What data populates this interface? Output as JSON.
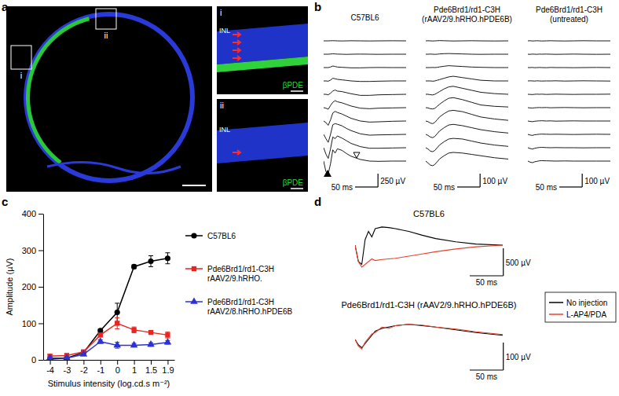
{
  "chart_data": [
    {
      "type": "image",
      "panel_label": "a",
      "box_labels": [
        "i",
        "ii"
      ],
      "insets": [
        {
          "label": "i",
          "layer": "INL",
          "stain": "βPDE"
        },
        {
          "label": "ii",
          "layer": "INL",
          "stain": "βPDE"
        }
      ]
    },
    {
      "type": "line",
      "panel_label": "b",
      "tick_labels": false,
      "color": "#000000",
      "x": [
        0,
        5,
        10,
        15,
        20,
        25,
        30,
        40,
        50,
        60,
        80,
        100,
        120,
        150,
        180
      ],
      "xlim": [
        0,
        180
      ],
      "groups": [
        {
          "title": "C57BL6",
          "ylim": [
            -250,
            250
          ],
          "scale_x": {
            "value": 50,
            "label": "50 ms"
          },
          "scale_y": {
            "value": 250,
            "label": "250 µV"
          },
          "series": [
            {
              "values": [
                0,
                0,
                0,
                2,
                3,
                2,
                0,
                -2,
                0,
                2,
                0,
                -2,
                0,
                2,
                0
              ]
            },
            {
              "values": [
                0,
                0,
                0,
                3,
                8,
                5,
                2,
                0,
                -3,
                0,
                2,
                0,
                -2,
                0,
                0
              ]
            },
            {
              "values": [
                0,
                0,
                0,
                10,
                30,
                20,
                10,
                5,
                0,
                -5,
                -5,
                0,
                2,
                0,
                0
              ]
            },
            {
              "values": [
                0,
                0,
                -5,
                15,
                50,
                40,
                30,
                20,
                10,
                0,
                -10,
                -10,
                -5,
                0,
                0
              ]
            },
            {
              "values": [
                0,
                0,
                -10,
                20,
                60,
                80,
                60,
                50,
                30,
                10,
                -20,
                -20,
                -10,
                -5,
                0
              ]
            },
            {
              "values": [
                0,
                -10,
                -30,
                40,
                100,
                130,
                110,
                90,
                60,
                30,
                -10,
                -20,
                -10,
                -5,
                0
              ]
            },
            {
              "values": [
                0,
                -30,
                -80,
                20,
                150,
                180,
                160,
                130,
                90,
                50,
                0,
                -20,
                -15,
                -5,
                0
              ]
            },
            {
              "values": [
                0,
                -80,
                -150,
                0,
                180,
                200,
                190,
                160,
                110,
                70,
                10,
                -15,
                -10,
                -5,
                0
              ]
            },
            {
              "values": [
                0,
                -120,
                -200,
                -20,
                200,
                170,
                220,
                180,
                130,
                80,
                20,
                -10,
                -10,
                -5,
                0
              ]
            },
            {
              "values": [
                0,
                -200,
                -240,
                -50,
                210,
                150,
                230,
                200,
                140,
                90,
                30,
                0,
                -5,
                0,
                0
              ]
            }
          ]
        },
        {
          "title": "Pde6Brd1/rd1-C3H (rAAV2/9.hRHO.hPDE6B)",
          "ylim": [
            -100,
            100
          ],
          "scale_x": {
            "value": 50,
            "label": "50 ms"
          },
          "scale_y": {
            "value": 100,
            "label": "100 µV"
          },
          "series": [
            {
              "values": [
                0,
                1,
                0,
                -1,
                0,
                1,
                2,
                1,
                0,
                -1,
                0,
                1,
                0,
                -1,
                0
              ]
            },
            {
              "values": [
                0,
                0,
                1,
                0,
                -1,
                0,
                2,
                4,
                5,
                4,
                2,
                0,
                -1,
                0,
                0
              ]
            },
            {
              "values": [
                0,
                0,
                0,
                1,
                0,
                2,
                5,
                10,
                14,
                12,
                8,
                4,
                2,
                0,
                0
              ]
            },
            {
              "values": [
                0,
                0,
                0,
                -2,
                0,
                5,
                10,
                20,
                30,
                35,
                25,
                15,
                5,
                0,
                0
              ]
            },
            {
              "values": [
                0,
                0,
                -3,
                -5,
                0,
                10,
                20,
                40,
                55,
                60,
                45,
                30,
                15,
                5,
                0
              ]
            },
            {
              "values": [
                0,
                -2,
                -8,
                -10,
                -5,
                10,
                25,
                50,
                70,
                75,
                60,
                40,
                20,
                10,
                5
              ]
            },
            {
              "values": [
                0,
                -5,
                -15,
                -20,
                -10,
                10,
                30,
                55,
                75,
                80,
                70,
                50,
                30,
                15,
                5
              ]
            },
            {
              "values": [
                0,
                -8,
                -20,
                -25,
                -15,
                5,
                25,
                50,
                70,
                75,
                65,
                50,
                35,
                20,
                10
              ]
            },
            {
              "values": [
                0,
                -10,
                -25,
                -30,
                -20,
                0,
                20,
                45,
                65,
                70,
                65,
                50,
                35,
                20,
                10
              ]
            },
            {
              "values": [
                0,
                -15,
                -30,
                -35,
                -25,
                -5,
                15,
                40,
                60,
                65,
                60,
                50,
                40,
                25,
                15
              ]
            }
          ]
        },
        {
          "title": "Pde6Brd1/rd1-C3H (untreated)",
          "ylim": [
            -100,
            100
          ],
          "scale_x": {
            "value": 50,
            "label": "50 ms"
          },
          "scale_y": {
            "value": 100,
            "label": "100 µV"
          },
          "series": [
            {
              "values": [
                0,
                1,
                -1,
                0,
                1,
                0,
                -1,
                0,
                1,
                0,
                -1,
                0,
                1,
                0,
                0
              ]
            },
            {
              "values": [
                0,
                -1,
                1,
                0,
                -1,
                1,
                0,
                1,
                0,
                -1,
                0,
                1,
                0,
                -1,
                0
              ]
            },
            {
              "values": [
                0,
                0,
                1,
                -1,
                0,
                1,
                0,
                -1,
                1,
                0,
                0,
                -1,
                0,
                1,
                0
              ]
            },
            {
              "values": [
                0,
                1,
                0,
                -1,
                1,
                0,
                -1,
                0,
                0,
                1,
                -1,
                0,
                1,
                0,
                -1
              ]
            },
            {
              "values": [
                0,
                -1,
                -2,
                0,
                1,
                0,
                1,
                -1,
                0,
                1,
                0,
                -1,
                0,
                0,
                1
              ]
            },
            {
              "values": [
                0,
                -2,
                -3,
                -1,
                0,
                1,
                0,
                1,
                -1,
                0,
                1,
                0,
                -1,
                0,
                0
              ]
            },
            {
              "values": [
                0,
                -3,
                -5,
                -2,
                0,
                1,
                2,
                0,
                1,
                -1,
                0,
                1,
                0,
                0,
                0
              ]
            },
            {
              "values": [
                0,
                -5,
                -8,
                -3,
                -1,
                1,
                2,
                1,
                0,
                1,
                0,
                -1,
                0,
                1,
                0
              ]
            },
            {
              "values": [
                0,
                -6,
                -10,
                -4,
                -1,
                2,
                3,
                1,
                0,
                1,
                0,
                0,
                -1,
                0,
                0
              ]
            },
            {
              "values": [
                0,
                -8,
                -12,
                -5,
                -2,
                2,
                3,
                2,
                1,
                0,
                1,
                0,
                0,
                0,
                0
              ]
            }
          ]
        }
      ]
    },
    {
      "type": "line",
      "panel_label": "c",
      "x_label": "Stimulus intensity (log.cd.s m⁻²)",
      "y_label": "Amplitude (µV)",
      "categories": [
        "-4",
        "-3",
        "-2",
        "-1",
        "0",
        "1",
        "1.5",
        "1.9"
      ],
      "ylim": [
        0,
        400
      ],
      "yticks": [
        0,
        100,
        200,
        300,
        400
      ],
      "legend": "right",
      "series": [
        {
          "name": "C57BL6",
          "color": "#000000",
          "marker": "circle",
          "values": [
            2,
            5,
            20,
            80,
            130,
            255,
            270,
            278
          ],
          "errors": [
            2,
            3,
            5,
            5,
            25,
            5,
            15,
            15
          ]
        },
        {
          "name": "Pde6Brd1/rd1-C3H rAAV2/9.hRHO.",
          "color": "#e8251f",
          "marker": "square",
          "values": [
            10,
            12,
            22,
            68,
            100,
            82,
            75,
            68
          ],
          "errors": [
            5,
            5,
            5,
            5,
            15,
            8,
            5,
            8
          ]
        },
        {
          "name": "Pde6Brd1/rd1-C3H rAAV2/8.hRHO.hPDE6B",
          "color": "#2d32d6",
          "marker": "triangle",
          "values": [
            5,
            5,
            15,
            50,
            40,
            40,
            42,
            48
          ],
          "errors": [
            3,
            3,
            3,
            5,
            8,
            5,
            5,
            5
          ]
        }
      ]
    },
    {
      "type": "line",
      "panel_label": "d",
      "tick_labels": false,
      "legend": "right",
      "x": [
        0,
        5,
        10,
        15,
        20,
        25,
        30,
        40,
        50,
        60,
        80,
        100,
        120,
        150,
        180,
        220
      ],
      "xlim": [
        0,
        220
      ],
      "groups": [
        {
          "title": "C57BL6",
          "ylim": [
            -500,
            500
          ],
          "scale_x": {
            "value": 50,
            "label": "50 ms"
          },
          "scale_y": {
            "value": 500,
            "label": "500 µV"
          },
          "series": [
            {
              "name": "No injection",
              "color": "#000000",
              "values": [
                0,
                -300,
                -350,
                100,
                250,
                150,
                300,
                330,
                320,
                300,
                250,
                180,
                120,
                60,
                20,
                0
              ]
            },
            {
              "name": "L-AP4/PDA",
              "color": "#e8402a",
              "values": [
                0,
                -300,
                -400,
                -350,
                -300,
                -250,
                -280,
                -260,
                -250,
                -240,
                -200,
                -160,
                -120,
                -70,
                -30,
                0
              ]
            }
          ]
        },
        {
          "title": "Pde6Brd1/rd1-C3H (rAAV2/9.hRHO.hPDE6B)",
          "ylim": [
            -100,
            100
          ],
          "scale_x": {
            "value": 50,
            "label": "50 ms"
          },
          "scale_y": {
            "value": 100,
            "label": "100 µV"
          },
          "series": [
            {
              "color": "#000000",
              "values": [
                0,
                -20,
                -30,
                -15,
                0,
                15,
                30,
                40,
                45,
                50,
                55,
                50,
                45,
                35,
                25,
                15
              ]
            },
            {
              "color": "#e8402a",
              "values": [
                0,
                -25,
                -35,
                -10,
                5,
                20,
                25,
                45,
                40,
                50,
                55,
                52,
                45,
                38,
                28,
                18
              ]
            }
          ]
        }
      ]
    }
  ]
}
